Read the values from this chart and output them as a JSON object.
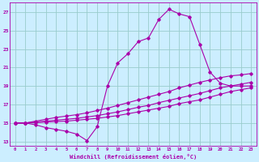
{
  "xlabel": "Windchill (Refroidissement éolien,°C)",
  "background_color": "#cceeff",
  "grid_color": "#99cccc",
  "line_color": "#aa00aa",
  "x_ticks": [
    0,
    1,
    2,
    3,
    4,
    5,
    6,
    7,
    8,
    9,
    10,
    11,
    12,
    13,
    14,
    15,
    16,
    17,
    18,
    19,
    20,
    21,
    22,
    23
  ],
  "y_ticks": [
    13,
    15,
    17,
    19,
    21,
    23,
    25,
    27
  ],
  "ylim": [
    12.5,
    28.0
  ],
  "xlim": [
    -0.5,
    23.5
  ],
  "series1": {
    "x": [
      0,
      1,
      2,
      3,
      4,
      5,
      6,
      7,
      8,
      9,
      10,
      11,
      12,
      13,
      14,
      15,
      16,
      17,
      18,
      19,
      20,
      21,
      22,
      23
    ],
    "y": [
      15.0,
      15.0,
      14.8,
      14.5,
      14.3,
      14.1,
      13.8,
      13.1,
      14.6,
      19.0,
      21.5,
      22.5,
      23.8,
      24.2,
      26.2,
      27.3,
      26.8,
      26.5,
      23.5,
      20.5,
      19.3,
      19.0,
      19.0,
      19.0
    ]
  },
  "series2": {
    "x": [
      0,
      1,
      2,
      3,
      4,
      5,
      6,
      7,
      8,
      9,
      10,
      11,
      12,
      13,
      14,
      15,
      16,
      17,
      18,
      19,
      20,
      21,
      22,
      23
    ],
    "y": [
      15.0,
      15.0,
      15.05,
      15.1,
      15.15,
      15.2,
      15.3,
      15.4,
      15.5,
      15.65,
      15.8,
      16.0,
      16.2,
      16.4,
      16.6,
      16.8,
      17.1,
      17.3,
      17.5,
      17.8,
      18.1,
      18.4,
      18.6,
      18.8
    ]
  },
  "series3": {
    "x": [
      0,
      1,
      2,
      3,
      4,
      5,
      6,
      7,
      8,
      9,
      10,
      11,
      12,
      13,
      14,
      15,
      16,
      17,
      18,
      19,
      20,
      21,
      22,
      23
    ],
    "y": [
      15.0,
      15.0,
      15.1,
      15.2,
      15.3,
      15.4,
      15.5,
      15.65,
      15.8,
      16.0,
      16.2,
      16.45,
      16.7,
      16.9,
      17.2,
      17.45,
      17.7,
      17.95,
      18.2,
      18.5,
      18.8,
      19.0,
      19.2,
      19.4
    ]
  },
  "series4": {
    "x": [
      0,
      1,
      2,
      3,
      4,
      5,
      6,
      7,
      8,
      9,
      10,
      11,
      12,
      13,
      14,
      15,
      16,
      17,
      18,
      19,
      20,
      21,
      22,
      23
    ],
    "y": [
      15.0,
      15.0,
      15.2,
      15.4,
      15.6,
      15.75,
      15.9,
      16.1,
      16.35,
      16.6,
      16.9,
      17.2,
      17.5,
      17.8,
      18.1,
      18.4,
      18.8,
      19.1,
      19.4,
      19.65,
      19.9,
      20.1,
      20.2,
      20.35
    ]
  }
}
